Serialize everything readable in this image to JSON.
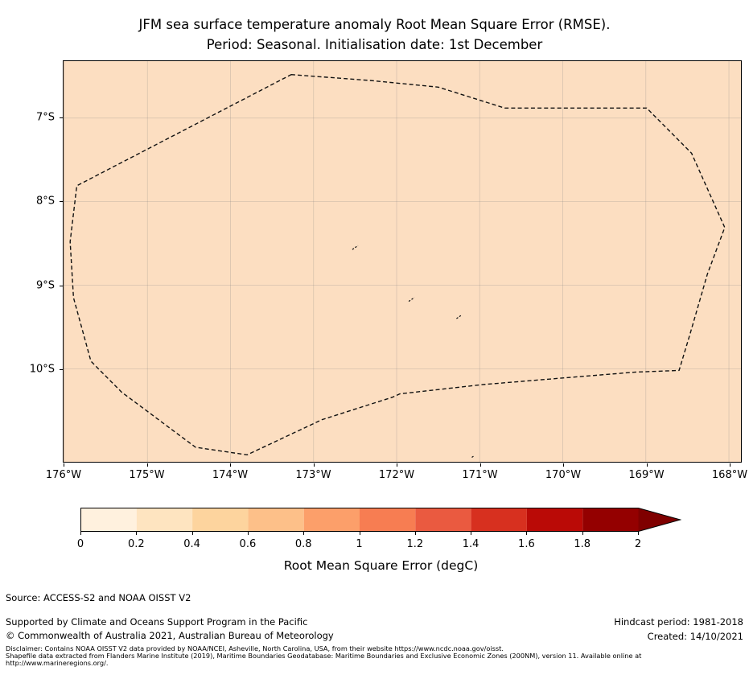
{
  "title": {
    "line1": "JFM sea surface temperature anomaly Root Mean Square Error (RMSE).",
    "line2": "Period: Seasonal. Initialisation date: 1st December"
  },
  "map": {
    "fill_color": "#fcdec1",
    "boundary_style": "black dashed line"
  },
  "colorbar": {
    "label": "Root Mean Square Error (degC)",
    "ticks": [
      "0",
      "0.2",
      "0.4",
      "0.6",
      "0.8",
      "1",
      "1.2",
      "1.4",
      "1.6",
      "1.8",
      "2"
    ],
    "colors": [
      "#fff1de",
      "#fee4c0",
      "#fdd49e",
      "#fdc089",
      "#fc9f6a",
      "#f77d52",
      "#ea5a40",
      "#d7301f",
      "#ba0a06",
      "#940000"
    ],
    "over_color": "#7f0000"
  },
  "footer": {
    "source": "Source: ACCESS-S2 and NOAA OISST V2",
    "supported": "Supported by Climate and Oceans Support Program in the Pacific",
    "copyright": "© Commonwealth of Australia 2021, Australian Bureau of Meteorology",
    "hindcast": "Hindcast period: 1981-2018",
    "created": "Created: 14/10/2021",
    "disclaimer_line1": "Disclaimer: Contains NOAA OISST V2 data provided by NOAA/NCEI, Asheville, North Carolina, USA, from their website https://www.ncdc.noaa.gov/oisst.",
    "disclaimer_line2": "Shapefile data extracted from Flanders Marine Institute (2019), Maritime Boundaries Geodatabase: Maritime Boundaries and Exclusive Economic Zones (200NM), version 11. Available online at",
    "disclaimer_line3": "http://www.marineregions.org/."
  },
  "chart_data": {
    "type": "heatmap",
    "subtype": "geographic RMSE field with dashed EEZ boundary overlay",
    "title": "JFM sea surface temperature anomaly Root Mean Square Error (RMSE). Period: Seasonal. Initialisation date: 1st December",
    "grid": true,
    "x_axis": {
      "ticks": [
        {
          "label": "176°W",
          "lon": 176
        },
        {
          "label": "175°W",
          "lon": 175
        },
        {
          "label": "174°W",
          "lon": 174
        },
        {
          "label": "173°W",
          "lon": 173
        },
        {
          "label": "172°W",
          "lon": 172
        },
        {
          "label": "171°W",
          "lon": 171
        },
        {
          "label": "170°W",
          "lon": 170
        },
        {
          "label": "169°W",
          "lon": 169
        },
        {
          "label": "168°W",
          "lon": 168
        }
      ],
      "range_lon_west": [
        176.01,
        167.85
      ]
    },
    "y_axis": {
      "ticks": [
        {
          "label": "7°S",
          "lat": 7
        },
        {
          "label": "8°S",
          "lat": 8
        },
        {
          "label": "9°S",
          "lat": 9
        },
        {
          "label": "10°S",
          "lat": 10
        }
      ],
      "range_lat_south": [
        6.32,
        11.11
      ]
    },
    "field": {
      "appearance": "uniform fill across entire plot area",
      "approx_rmse_degC": 0.3,
      "fill_color": "#fcdec1"
    },
    "colorbar": {
      "min": 0,
      "max": 2,
      "step": 0.2,
      "extend": "max",
      "units": "degC"
    },
    "eez_boundary": [
      [
        173.27,
        6.48
      ],
      [
        172.32,
        6.55
      ],
      [
        171.5,
        6.63
      ],
      [
        170.7,
        6.88
      ],
      [
        168.99,
        6.88
      ],
      [
        168.45,
        7.42
      ],
      [
        168.05,
        8.31
      ],
      [
        168.26,
        8.87
      ],
      [
        168.47,
        9.59
      ],
      [
        168.6,
        10.02
      ],
      [
        169.13,
        10.04
      ],
      [
        170.0,
        10.11
      ],
      [
        170.97,
        10.19
      ],
      [
        171.96,
        10.3
      ],
      [
        172.05,
        10.34
      ],
      [
        172.9,
        10.61
      ],
      [
        173.8,
        11.03
      ],
      [
        174.42,
        10.94
      ],
      [
        175.31,
        10.28
      ],
      [
        175.68,
        9.91
      ],
      [
        175.89,
        9.15
      ],
      [
        175.93,
        8.48
      ],
      [
        175.85,
        7.81
      ]
    ],
    "island_marks": [
      {
        "lon": 172.5,
        "lat": 8.55,
        "size": 7
      },
      {
        "lon": 171.82,
        "lat": 9.17,
        "size": 7
      },
      {
        "lon": 171.25,
        "lat": 9.38,
        "size": 6
      },
      {
        "lon": 171.08,
        "lat": 11.05,
        "size": 3
      }
    ]
  }
}
